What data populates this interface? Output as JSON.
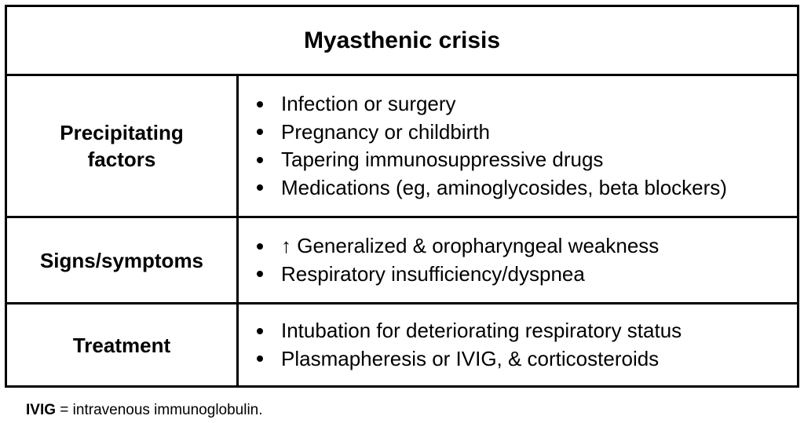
{
  "table": {
    "title": "Myasthenic crisis",
    "rows": [
      {
        "label": "Precipitating\nfactors",
        "items": [
          "Infection or surgery",
          "Pregnancy or childbirth",
          "Tapering immunosuppressive drugs",
          "Medications (eg, aminoglycosides, beta blockers)"
        ]
      },
      {
        "label": "Signs/symptoms",
        "items": [
          "↑ Generalized & oropharyngeal weakness",
          "Respiratory insufficiency/dyspnea"
        ]
      },
      {
        "label": "Treatment",
        "items": [
          "Intubation for deteriorating respiratory status",
          "Plasmapheresis or IVIG, & corticosteroids"
        ]
      }
    ]
  },
  "footnote": {
    "term": "IVIG",
    "definition": " = intravenous immunoglobulin."
  }
}
